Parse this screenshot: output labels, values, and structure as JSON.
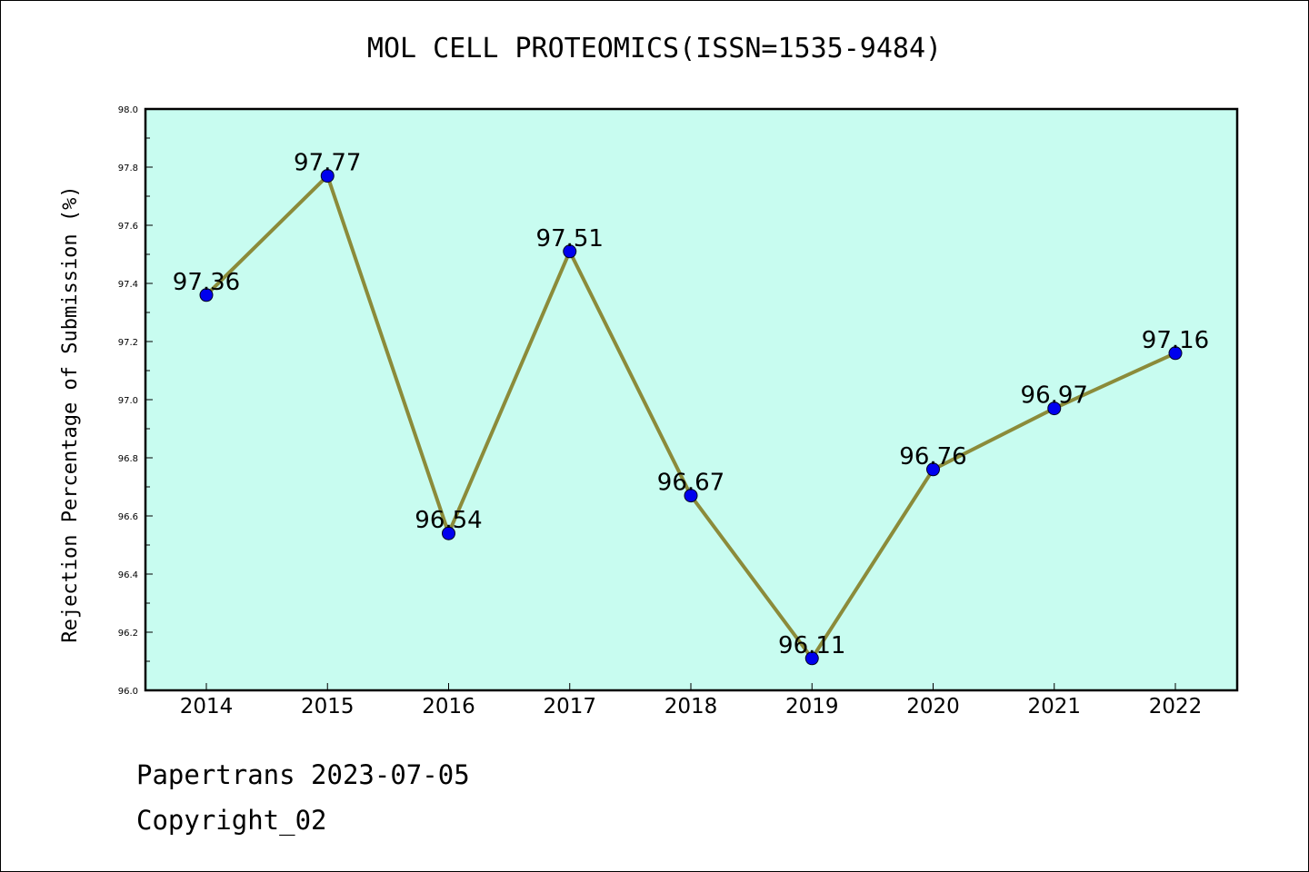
{
  "title": "MOL CELL PROTEOMICS(ISSN=1535-9484)",
  "footer": {
    "line1": "Papertrans 2023-07-05",
    "line2": "Copyright_02"
  },
  "colors": {
    "plot_background": "#c8fcf0",
    "line": "#8b8b3a",
    "marker": "#0000ee"
  },
  "chart_data": {
    "type": "line",
    "title": "MOL CELL PROTEOMICS(ISSN=1535-9484)",
    "xlabel": "",
    "ylabel": "Rejection Percentage of Submission (%)",
    "categories": [
      "2014",
      "2015",
      "2016",
      "2017",
      "2018",
      "2019",
      "2020",
      "2021",
      "2022"
    ],
    "values": [
      97.36,
      97.77,
      96.54,
      97.51,
      96.67,
      96.11,
      96.76,
      96.97,
      97.16
    ],
    "data_labels": [
      "97.36",
      "97.77",
      "96.54",
      "97.51",
      "96.67",
      "96.11",
      "96.76",
      "96.97",
      "97.16"
    ],
    "ylim": [
      96.0,
      98.0
    ],
    "yticks": [
      "96.0",
      "96.2",
      "96.4",
      "96.6",
      "96.8",
      "97.0",
      "97.2",
      "97.4",
      "97.6",
      "97.8",
      "98.0"
    ],
    "grid": false,
    "legend": "none"
  }
}
